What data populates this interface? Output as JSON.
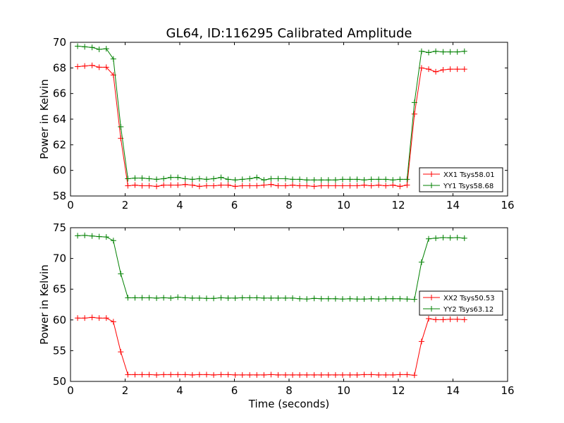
{
  "figure_title": "GL64, ID:116295 Calibrated Amplitude",
  "x_label": "Time (seconds)",
  "chart_data": [
    {
      "type": "line",
      "ylabel": "Power in Kelvin",
      "xlim": [
        0,
        16
      ],
      "ylim": [
        58,
        70
      ],
      "xticks": [
        0,
        2,
        4,
        6,
        8,
        10,
        12,
        14,
        16
      ],
      "yticks": [
        58,
        60,
        62,
        64,
        66,
        68,
        70
      ],
      "legend_position": "lower-right",
      "x": [
        0.26,
        0.52,
        0.79,
        1.05,
        1.31,
        1.57,
        1.84,
        2.1,
        2.36,
        2.62,
        2.88,
        3.15,
        3.41,
        3.67,
        3.93,
        4.2,
        4.46,
        4.72,
        4.98,
        5.24,
        5.51,
        5.77,
        6.03,
        6.29,
        6.56,
        6.82,
        7.08,
        7.34,
        7.6,
        7.87,
        8.13,
        8.39,
        8.65,
        8.92,
        9.18,
        9.44,
        9.7,
        9.96,
        10.23,
        10.49,
        10.75,
        11.01,
        11.28,
        11.54,
        11.8,
        12.06,
        12.32,
        12.59,
        12.85,
        13.11,
        13.37,
        13.64,
        13.9,
        14.16,
        14.42
      ],
      "series": [
        {
          "name": "XX1 Tsys58.01",
          "color": "#ff0000",
          "values": [
            68.1,
            68.15,
            68.2,
            68.05,
            68.05,
            67.45,
            62.5,
            58.8,
            58.85,
            58.8,
            58.8,
            58.75,
            58.85,
            58.85,
            58.85,
            58.9,
            58.85,
            58.75,
            58.8,
            58.8,
            58.85,
            58.85,
            58.75,
            58.8,
            58.8,
            58.8,
            58.85,
            58.9,
            58.8,
            58.8,
            58.85,
            58.8,
            58.8,
            58.75,
            58.8,
            58.8,
            58.8,
            58.8,
            58.8,
            58.8,
            58.85,
            58.8,
            58.85,
            58.8,
            58.85,
            58.75,
            58.85,
            64.4,
            68.0,
            67.9,
            67.7,
            67.85,
            67.9,
            67.9,
            67.9
          ]
        },
        {
          "name": "YY1 Tsys58.68",
          "color": "#008000",
          "values": [
            69.7,
            69.65,
            69.6,
            69.45,
            69.5,
            68.7,
            63.4,
            59.35,
            59.4,
            59.4,
            59.35,
            59.3,
            59.35,
            59.45,
            59.45,
            59.35,
            59.3,
            59.35,
            59.3,
            59.35,
            59.45,
            59.3,
            59.25,
            59.3,
            59.35,
            59.45,
            59.25,
            59.35,
            59.35,
            59.35,
            59.3,
            59.3,
            59.25,
            59.25,
            59.25,
            59.25,
            59.25,
            59.3,
            59.3,
            59.3,
            59.25,
            59.3,
            59.3,
            59.3,
            59.25,
            59.3,
            59.3,
            65.3,
            69.3,
            69.2,
            69.3,
            69.25,
            69.25,
            69.25,
            69.3
          ]
        }
      ]
    },
    {
      "type": "line",
      "ylabel": "Power in Kelvin",
      "xlabel": "Time (seconds)",
      "xlim": [
        0,
        16
      ],
      "ylim": [
        50,
        75
      ],
      "xticks": [
        0,
        2,
        4,
        6,
        8,
        10,
        12,
        14,
        16
      ],
      "yticks": [
        50,
        55,
        60,
        65,
        70,
        75
      ],
      "legend_position": "right",
      "x": [
        0.26,
        0.52,
        0.79,
        1.05,
        1.31,
        1.57,
        1.84,
        2.1,
        2.36,
        2.62,
        2.88,
        3.15,
        3.41,
        3.67,
        3.93,
        4.2,
        4.46,
        4.72,
        4.98,
        5.24,
        5.51,
        5.77,
        6.03,
        6.29,
        6.56,
        6.82,
        7.08,
        7.34,
        7.6,
        7.87,
        8.13,
        8.39,
        8.65,
        8.92,
        9.18,
        9.44,
        9.7,
        9.96,
        10.23,
        10.49,
        10.75,
        11.01,
        11.28,
        11.54,
        11.8,
        12.06,
        12.32,
        12.59,
        12.85,
        13.11,
        13.37,
        13.64,
        13.9,
        14.16,
        14.42
      ],
      "series": [
        {
          "name": "XX2 Tsys50.53",
          "color": "#ff0000",
          "values": [
            60.3,
            60.3,
            60.4,
            60.3,
            60.3,
            59.7,
            54.8,
            51.1,
            51.1,
            51.1,
            51.1,
            51.05,
            51.1,
            51.1,
            51.1,
            51.1,
            51.05,
            51.1,
            51.1,
            51.05,
            51.1,
            51.1,
            51.05,
            51.05,
            51.05,
            51.05,
            51.05,
            51.1,
            51.05,
            51.05,
            51.05,
            51.05,
            51.05,
            51.05,
            51.05,
            51.05,
            51.05,
            51.05,
            51.05,
            51.05,
            51.1,
            51.1,
            51.05,
            51.05,
            51.05,
            51.1,
            51.1,
            51.0,
            56.5,
            60.2,
            60.05,
            60.05,
            60.1,
            60.1,
            60.05
          ]
        },
        {
          "name": "YY2 Tsys63.12",
          "color": "#008000",
          "values": [
            73.7,
            73.75,
            73.65,
            73.55,
            73.5,
            72.9,
            67.5,
            63.6,
            63.6,
            63.6,
            63.6,
            63.55,
            63.6,
            63.55,
            63.7,
            63.6,
            63.55,
            63.55,
            63.5,
            63.5,
            63.6,
            63.55,
            63.55,
            63.6,
            63.6,
            63.6,
            63.55,
            63.55,
            63.55,
            63.55,
            63.55,
            63.45,
            63.4,
            63.5,
            63.45,
            63.45,
            63.45,
            63.4,
            63.45,
            63.4,
            63.4,
            63.45,
            63.4,
            63.45,
            63.45,
            63.45,
            63.4,
            63.35,
            69.4,
            73.2,
            73.3,
            73.4,
            73.35,
            73.4,
            73.3
          ]
        }
      ]
    }
  ]
}
